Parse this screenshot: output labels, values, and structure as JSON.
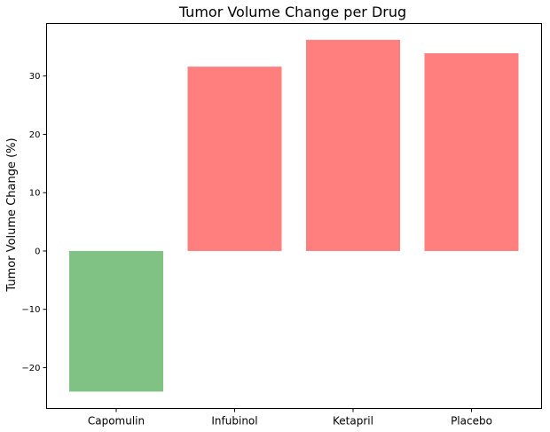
{
  "chart_data": {
    "type": "bar",
    "title": "Tumor Volume Change per Drug",
    "xlabel": "",
    "ylabel": "Tumor Volume Change (%)",
    "categories": [
      "Capomulin",
      "Infubinol",
      "Ketapril",
      "Placebo"
    ],
    "values": [
      -24.1,
      31.6,
      36.2,
      33.9
    ],
    "ylim": [
      -27,
      39
    ],
    "yticks": [
      -20,
      -10,
      0,
      10,
      20,
      30
    ],
    "ytick_labels": [
      "−20",
      "−10",
      "0",
      "10",
      "20",
      "30"
    ],
    "grid": false,
    "colors": {
      "negative": "#80c283",
      "positive": "#ff7f7f"
    }
  }
}
